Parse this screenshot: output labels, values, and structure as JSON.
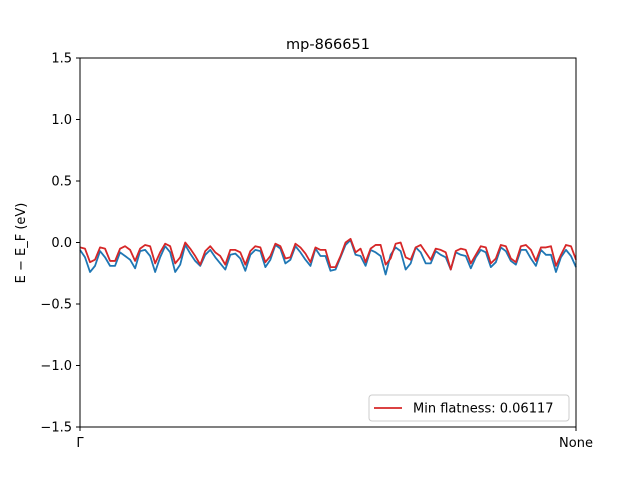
{
  "chart_data": {
    "type": "line",
    "title": "mp-866651",
    "ylabel": "E − E_F (eV)",
    "xlabel": "",
    "ylim": [
      -1.5,
      1.5
    ],
    "yticks": [
      -1.5,
      -1.0,
      -0.5,
      0.0,
      0.5,
      1.0,
      1.5
    ],
    "ytick_labels": [
      "−1.5",
      "−1.0",
      "−0.5",
      "0.0",
      "0.5",
      "1.0",
      "1.5"
    ],
    "xticks": [
      "Γ",
      "None"
    ],
    "grid": false,
    "legend_position": "lower-right",
    "legend": [
      "Min flatness: 0.06117"
    ],
    "series": [
      {
        "name": "",
        "color": "#1f77b4",
        "values": [
          -0.06,
          -0.12,
          -0.24,
          -0.19,
          -0.07,
          -0.12,
          -0.19,
          -0.19,
          -0.08,
          -0.11,
          -0.14,
          -0.21,
          -0.07,
          -0.06,
          -0.11,
          -0.24,
          -0.12,
          -0.03,
          -0.08,
          -0.24,
          -0.18,
          -0.02,
          -0.09,
          -0.15,
          -0.19,
          -0.1,
          -0.06,
          -0.12,
          -0.17,
          -0.22,
          -0.1,
          -0.09,
          -0.13,
          -0.23,
          -0.1,
          -0.06,
          -0.07,
          -0.2,
          -0.14,
          -0.02,
          -0.05,
          -0.17,
          -0.14,
          -0.03,
          -0.08,
          -0.14,
          -0.19,
          -0.05,
          -0.11,
          -0.11,
          -0.23,
          -0.22,
          -0.12,
          -0.02,
          0.02,
          -0.1,
          -0.11,
          -0.19,
          -0.06,
          -0.08,
          -0.11,
          -0.26,
          -0.1,
          -0.04,
          -0.07,
          -0.22,
          -0.17,
          -0.04,
          -0.08,
          -0.17,
          -0.17,
          -0.07,
          -0.1,
          -0.12,
          -0.22,
          -0.08,
          -0.1,
          -0.11,
          -0.21,
          -0.12,
          -0.06,
          -0.08,
          -0.2,
          -0.16,
          -0.04,
          -0.07,
          -0.15,
          -0.18,
          -0.06,
          -0.06,
          -0.13,
          -0.19,
          -0.06,
          -0.1,
          -0.1,
          -0.24,
          -0.12,
          -0.06,
          -0.11,
          -0.2
        ]
      },
      {
        "name": "Min flatness: 0.06117",
        "color": "#d62728",
        "values": [
          -0.04,
          -0.05,
          -0.16,
          -0.14,
          -0.04,
          -0.05,
          -0.15,
          -0.15,
          -0.05,
          -0.03,
          -0.06,
          -0.15,
          -0.05,
          -0.02,
          -0.03,
          -0.17,
          -0.08,
          -0.01,
          -0.03,
          -0.17,
          -0.12,
          0.0,
          -0.05,
          -0.11,
          -0.18,
          -0.07,
          -0.03,
          -0.08,
          -0.11,
          -0.18,
          -0.06,
          -0.06,
          -0.08,
          -0.18,
          -0.07,
          -0.03,
          -0.04,
          -0.16,
          -0.11,
          -0.01,
          -0.03,
          -0.13,
          -0.12,
          -0.01,
          -0.04,
          -0.09,
          -0.16,
          -0.04,
          -0.06,
          -0.06,
          -0.2,
          -0.2,
          -0.11,
          0.0,
          0.03,
          -0.08,
          -0.05,
          -0.16,
          -0.05,
          -0.02,
          -0.02,
          -0.18,
          -0.13,
          -0.01,
          0.0,
          -0.12,
          -0.14,
          -0.04,
          -0.02,
          -0.08,
          -0.14,
          -0.05,
          -0.06,
          -0.08,
          -0.22,
          -0.07,
          -0.05,
          -0.06,
          -0.17,
          -0.1,
          -0.03,
          -0.04,
          -0.17,
          -0.13,
          -0.02,
          -0.03,
          -0.13,
          -0.16,
          -0.03,
          -0.02,
          -0.06,
          -0.15,
          -0.04,
          -0.04,
          -0.03,
          -0.19,
          -0.1,
          -0.02,
          -0.03,
          -0.14
        ]
      }
    ]
  }
}
